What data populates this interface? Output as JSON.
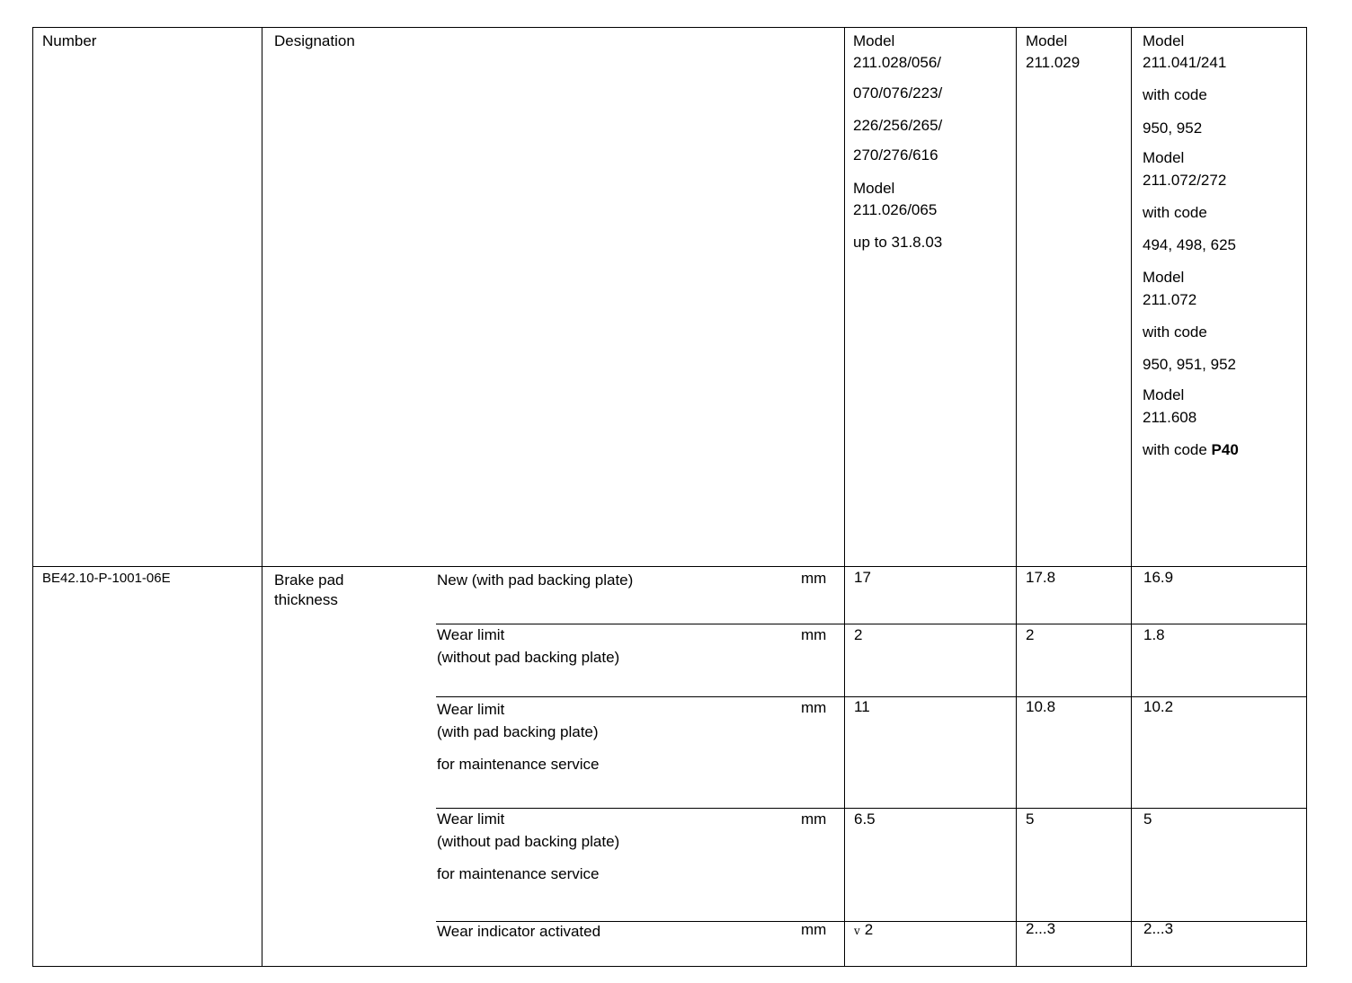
{
  "header": {
    "number": "Number",
    "designation": "Designation",
    "col1": [
      "Model",
      "211.028/056/",
      "070/076/223/",
      "226/256/265/",
      "270/276/616",
      "Model",
      "211.026/065",
      "up to 31.8.03"
    ],
    "col2": [
      "Model",
      "211.029"
    ],
    "col3": [
      "Model",
      "211.041/241",
      "with code",
      "950, 952",
      "Model",
      "211.072/272",
      "with code",
      "494, 498, 625",
      "Model",
      "211.072",
      "with code",
      "950, 951, 952",
      "Model",
      "211.608"
    ],
    "col3_last_prefix": "with code ",
    "col3_last_bold": "P40"
  },
  "body": {
    "number": "BE42.10-P-1001-06E",
    "designation": [
      "Brake pad",
      "thickness"
    ],
    "rows": [
      {
        "desc": [
          "New  (with pad backing plate)"
        ],
        "unit": "mm",
        "v1": "17",
        "v2": "17.8",
        "v3": "16.9"
      },
      {
        "desc": [
          "Wear limit",
          "(without pad backing plate)"
        ],
        "unit": "mm",
        "v1": "2",
        "v2": "2",
        "v3": "1.8"
      },
      {
        "desc": [
          "Wear  limit",
          "(with pad backing plate)",
          "for maintenance service"
        ],
        "unit": "mm",
        "v1": "11",
        "v2": "10.8",
        "v3": "10.2"
      },
      {
        "desc": [
          "Wear limit",
          "(without pad backing plate)",
          "for maintenance service"
        ],
        "unit": "mm",
        "v1": "6.5",
        "v2": "5",
        "v3": "5"
      },
      {
        "desc": [
          "Wear indicator activated"
        ],
        "unit": "mm",
        "v1_symbol": "v",
        "v1": "2",
        "v2": "2...3",
        "v3": "2...3"
      }
    ]
  }
}
